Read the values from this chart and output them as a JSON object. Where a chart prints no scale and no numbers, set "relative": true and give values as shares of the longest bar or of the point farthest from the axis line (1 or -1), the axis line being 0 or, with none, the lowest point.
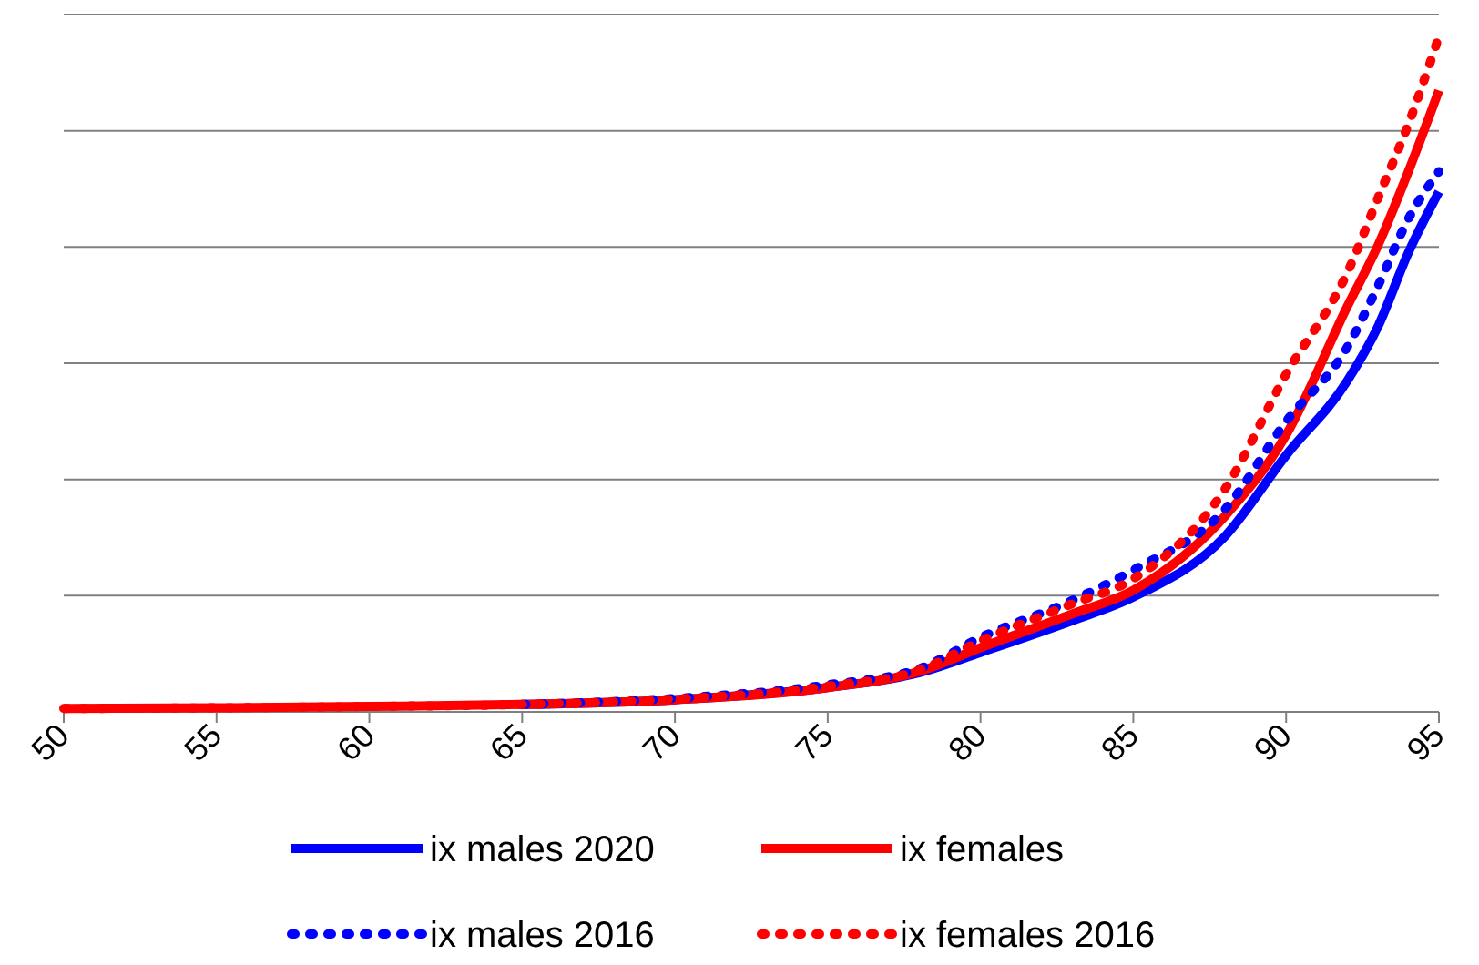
{
  "chart_data": {
    "type": "line",
    "relative": true,
    "x": [
      50,
      55,
      60,
      65,
      70,
      75,
      78,
      80,
      83,
      85,
      88,
      90,
      92,
      93,
      94,
      95
    ],
    "xlim": [
      50,
      95
    ],
    "xticks": [
      50,
      55,
      60,
      65,
      70,
      75,
      80,
      85,
      90,
      95
    ],
    "grid": "y",
    "legend": "bottom",
    "series": [
      {
        "name": "ix males 2020",
        "color": "#0000ff",
        "line_style": "solid",
        "values": [
          null,
          null,
          null,
          0.011,
          0.018,
          0.036,
          0.058,
          0.088,
          0.135,
          0.17,
          0.26,
          0.38,
          0.49,
          0.57,
          0.68,
          0.77
        ]
      },
      {
        "name": "ix females",
        "color": "#ff0000",
        "line_style": "solid",
        "values": [
          0.005,
          0.006,
          0.008,
          0.011,
          0.018,
          0.036,
          0.06,
          0.095,
          0.145,
          0.18,
          0.29,
          0.41,
          0.6,
          0.69,
          0.8,
          0.92
        ]
      },
      {
        "name": "ix males 2016",
        "color": "#0000ff",
        "line_style": "dotted",
        "values": [
          null,
          null,
          null,
          0.011,
          0.02,
          0.04,
          0.064,
          0.11,
          0.165,
          0.21,
          0.3,
          0.43,
          0.54,
          0.63,
          0.73,
          0.8
        ]
      },
      {
        "name": "ix females 2016",
        "color": "#ff0000",
        "line_style": "dotted",
        "values": [
          0.005,
          0.006,
          0.008,
          0.011,
          0.019,
          0.038,
          0.062,
          0.105,
          0.16,
          0.197,
          0.33,
          0.5,
          0.65,
          0.76,
          0.87,
          1
        ]
      }
    ]
  }
}
